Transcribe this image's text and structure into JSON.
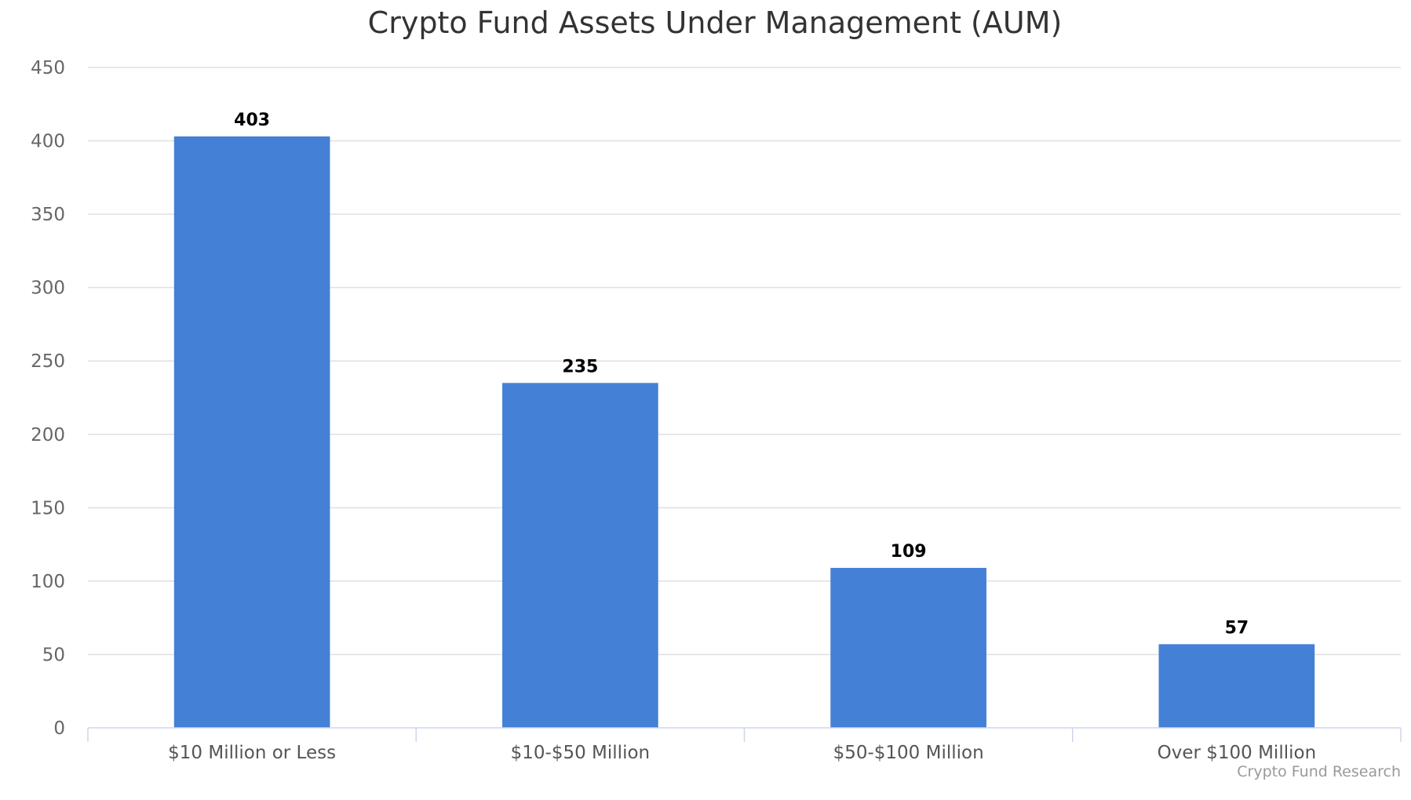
{
  "chart_data": {
    "type": "bar",
    "title": "Crypto Fund Assets Under Management (AUM)",
    "xlabel": "",
    "ylabel": "",
    "categories": [
      "$10 Million or Less",
      "$10-$50 Million",
      "$50-$100 Million",
      "Over $100 Million"
    ],
    "values": [
      403,
      235,
      109,
      57
    ],
    "data_labels": [
      "403",
      "235",
      "109",
      "57"
    ],
    "ylim": [
      0,
      450
    ],
    "yticks": [
      0,
      50,
      100,
      150,
      200,
      250,
      300,
      350,
      400,
      450
    ],
    "ytick_labels": [
      "0",
      "50",
      "100",
      "150",
      "200",
      "250",
      "300",
      "350",
      "400",
      "450"
    ],
    "grid": true,
    "legend": "none",
    "bar_color": "#4480d6"
  },
  "credit": "Crypto Fund Research"
}
